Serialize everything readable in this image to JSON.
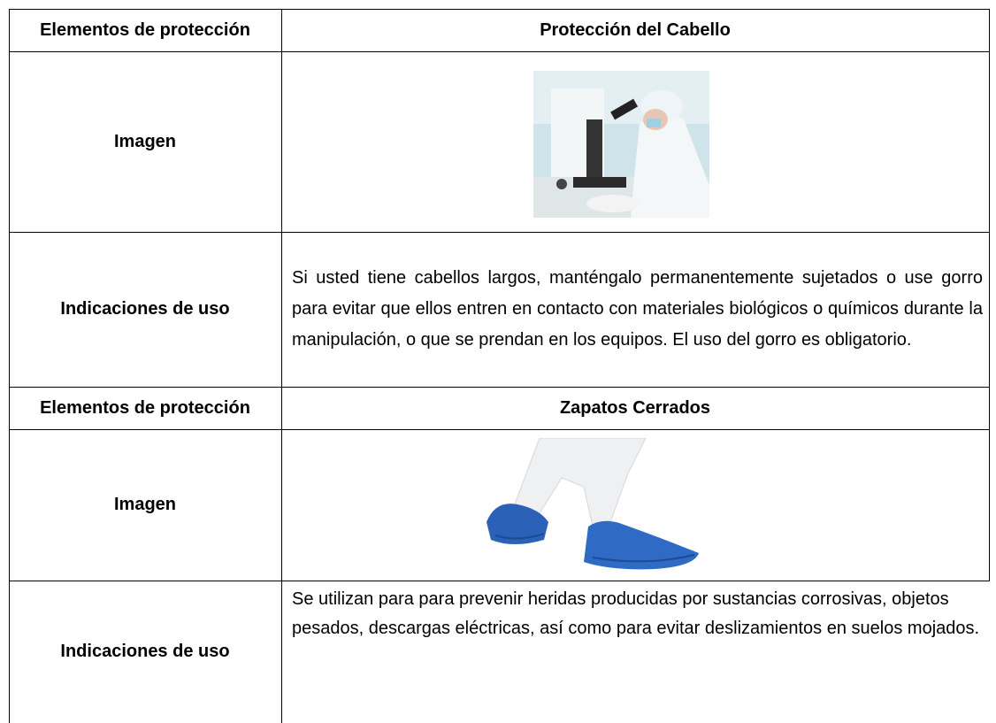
{
  "sections": [
    {
      "header_label": "Elementos de protección",
      "title": "Protección del Cabello",
      "image_label": "Imagen",
      "usage_label": "Indicaciones de uso",
      "usage_text": "Si usted tiene cabellos largos, manténgalo permanentemente sujetados o use gorro para evitar que ellos entren en contacto con materiales biológicos o químicos durante la manipulación, o que se prendan en los equipos. El uso del gorro es obligatorio."
    },
    {
      "header_label": "Elementos de protección",
      "title": "Zapatos Cerrados",
      "image_label": "Imagen",
      "usage_label": "Indicaciones de uso",
      "usage_text": "Se utilizan para para prevenir heridas producidas por sustancias corrosivas, objetos pesados, descargas eléctricas, así como para evitar deslizamientos en suelos mojados."
    }
  ]
}
